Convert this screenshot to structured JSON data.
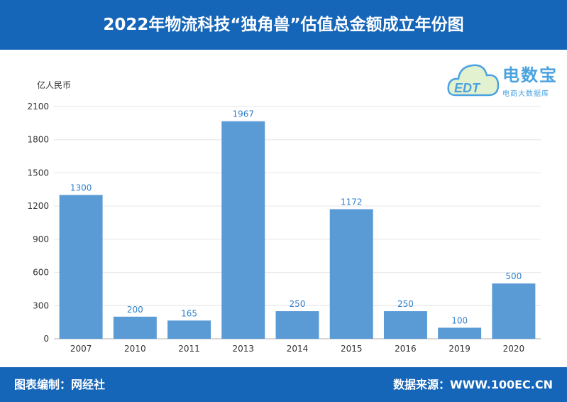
{
  "header": {
    "title": "2022年物流科技“独角兽”估值总金额成立年份图"
  },
  "logo": {
    "name": "电数宝",
    "sub": "电商大数据库",
    "badge": "EDT"
  },
  "footer": {
    "left": "图表编制：网经社",
    "right": "数据来源：WWW.100EC.CN"
  },
  "colors": {
    "header_bg": "#1565b8",
    "bar": "#5b9bd5",
    "label": "#2f7fc9",
    "grid": "#e6e6e6"
  },
  "chart_data": {
    "type": "bar",
    "unit_label": "亿人民币",
    "categories": [
      "2007",
      "2010",
      "2011",
      "2013",
      "2014",
      "2015",
      "2016",
      "2019",
      "2020"
    ],
    "values": [
      1300,
      200,
      165,
      1967,
      250,
      1172,
      250,
      100,
      500
    ],
    "ylim": [
      0,
      2100
    ],
    "yticks": [
      0,
      300,
      600,
      900,
      1200,
      1500,
      1800,
      2100
    ],
    "grid": true
  }
}
